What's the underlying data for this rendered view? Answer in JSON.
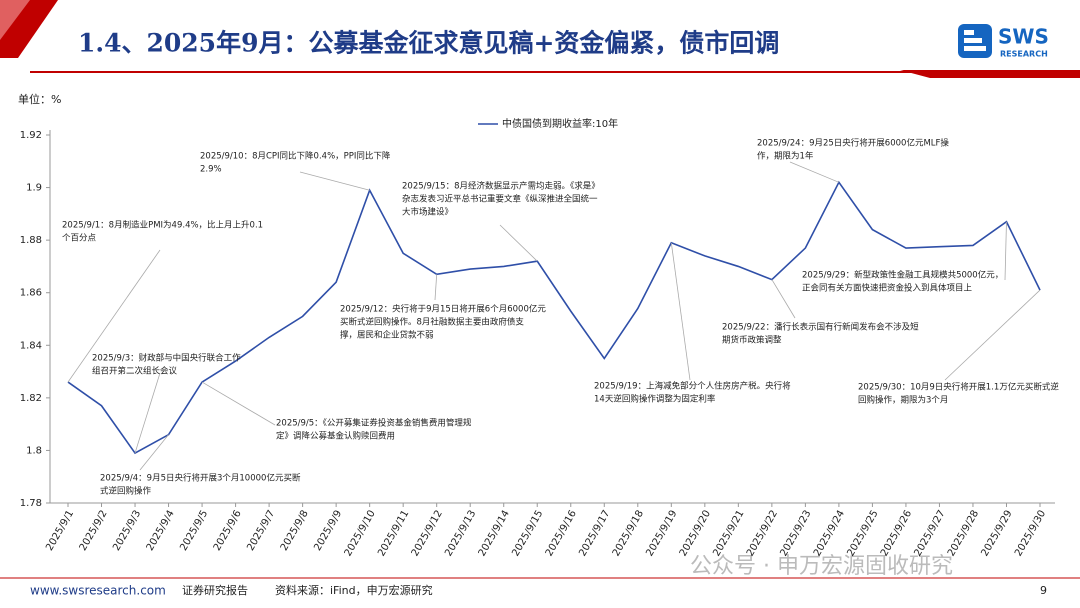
{
  "header": {
    "title": "1.4、2025年9月：公募基金征求意见稿+资金偏紧，债市回调",
    "logo": "SWS",
    "logo_sub": "RESEARCH"
  },
  "footer": {
    "site": "www.swsresearch.com",
    "report": "证券研究报告",
    "source": "资料来源：iFind，申万宏源研究",
    "page": "9"
  },
  "watermark": "公众号 · 申万宏源固收研究",
  "chart_data": {
    "type": "line",
    "y_unit": "单位：%",
    "categories": [
      "2025/9/1",
      "2025/9/2",
      "2025/9/3",
      "2025/9/4",
      "2025/9/5",
      "2025/9/6",
      "2025/9/7",
      "2025/9/8",
      "2025/9/9",
      "2025/9/10",
      "2025/9/11",
      "2025/9/12",
      "2025/9/13",
      "2025/9/14",
      "2025/9/15",
      "2025/9/16",
      "2025/9/17",
      "2025/9/18",
      "2025/9/19",
      "2025/9/20",
      "2025/9/21",
      "2025/9/22",
      "2025/9/23",
      "2025/9/24",
      "2025/9/25",
      "2025/9/26",
      "2025/9/27",
      "2025/9/28",
      "2025/9/29",
      "2025/9/30"
    ],
    "series": [
      {
        "name": "中债国债到期收益率:10年",
        "color": "#2f4fa8",
        "values": [
          1.826,
          1.817,
          1.799,
          1.806,
          1.826,
          1.834,
          1.843,
          1.851,
          1.864,
          1.899,
          1.875,
          1.867,
          1.869,
          1.87,
          1.872,
          1.853,
          1.835,
          1.854,
          1.879,
          1.874,
          1.87,
          1.865,
          1.877,
          1.902,
          1.884,
          1.877,
          1.8775,
          1.878,
          1.887,
          1.861
        ]
      }
    ],
    "ylim": [
      1.78,
      1.92
    ],
    "yticks": [
      1.78,
      1.8,
      1.82,
      1.84,
      1.86,
      1.88,
      1.9,
      1.92
    ],
    "legend": "top",
    "annotations": [
      {
        "lines": [
          "2025/9/1：8月制造业PMI为49.4%，比上月上升0.1",
          "个百分点"
        ]
      },
      {
        "lines": [
          "2025/9/3：财政部与中国央行联合工作",
          "组召开第二次组长会议"
        ]
      },
      {
        "lines": [
          "2025/9/4：9月5日央行将开展3个月10000亿元买断",
          "式逆回购操作"
        ]
      },
      {
        "lines": [
          "2025/9/5：《公开募集证券投资基金销售费用管理规",
          "定》调降公募基金认购赎回费用"
        ]
      },
      {
        "lines": [
          "2025/9/10：8月CPI同比下降0.4%，PPI同比下降",
          "2.9%"
        ]
      },
      {
        "lines": [
          "2025/9/12：央行将于9月15日将开展6个月6000亿元",
          "买断式逆回购操作。8月社融数据主要由政府债支",
          "撑，居民和企业贷款不弱"
        ]
      },
      {
        "lines": [
          "2025/9/15：8月经济数据显示产需均走弱。《求是》",
          "杂志发表习近平总书记重要文章《纵深推进全国统一",
          "大市场建设》"
        ]
      },
      {
        "lines": [
          "2025/9/19：上海减免部分个人住房房产税。央行将",
          "14天逆回购操作调整为固定利率"
        ]
      },
      {
        "lines": [
          "2025/9/22：潘行长表示国有行新闻发布会不涉及短",
          "期货币政策调整"
        ]
      },
      {
        "lines": [
          "2025/9/24：9月25日央行将开展6000亿元MLF操",
          "作，期限为1年"
        ]
      },
      {
        "lines": [
          "2025/9/29：新型政策性金融工具规模共5000亿元，",
          "正会同有关方面快速把资金投入到具体项目上"
        ]
      },
      {
        "lines": [
          "2025/9/30：10月9日央行将开展1.1万亿元买断式逆",
          "回购操作，期限为3个月"
        ]
      }
    ]
  }
}
